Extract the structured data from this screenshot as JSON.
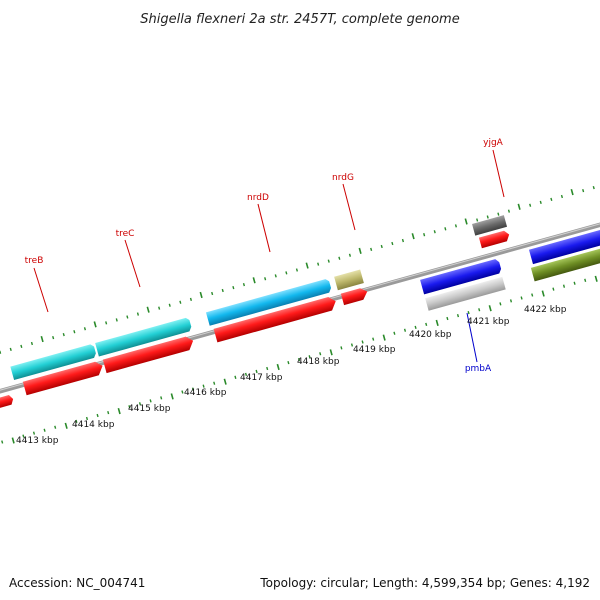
{
  "title": "Shigella flexneri 2a str. 2457T, complete genome",
  "footer": {
    "accession": "Accession: NC_004741",
    "summary": "Topology: circular; Length: 4,599,354 bp; Genes: 4,192"
  },
  "kbp_labels": [
    "4413 kbp",
    "4414 kbp",
    "4415 kbp",
    "4416 kbp",
    "4417 kbp",
    "4418 kbp",
    "4419 kbp",
    "4420 kbp",
    "4421 kbp",
    "4422 kbp"
  ],
  "gene_labels": [
    {
      "name": "treB",
      "color": "#cc0000"
    },
    {
      "name": "treC",
      "color": "#cc0000"
    },
    {
      "name": "nrdD",
      "color": "#cc0000"
    },
    {
      "name": "nrdG",
      "color": "#cc0000"
    },
    {
      "name": "yjgA",
      "color": "#cc0000"
    },
    {
      "name": "pmbA",
      "color": "#0000cc"
    }
  ],
  "colors": {
    "cds": "#ff1a1a",
    "cyan_feature": "#22cfd4",
    "blue_feature": "#1a1aee",
    "grey_feature": "#c8c8c8",
    "dark_grey_feature": "#707070",
    "olive_feature": "#6e8e24",
    "khaki_feature": "#bdb76b",
    "backbone": "#8a8a8a",
    "tick": "#2a8a2a"
  }
}
